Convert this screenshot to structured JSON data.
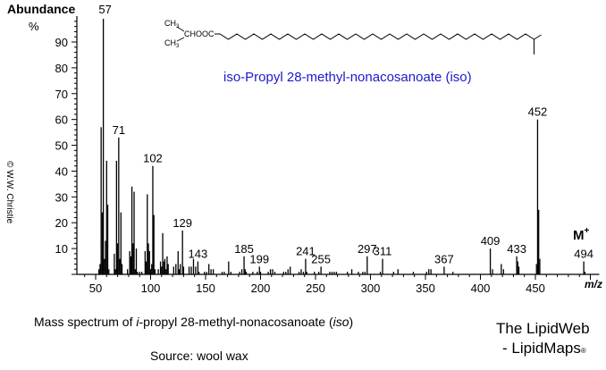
{
  "chart_data": {
    "type": "bar",
    "title": "iso-Propyl 28-methyl-nonacosanoate  (iso)",
    "xlabel": "m/z",
    "ylabel": "Abundance %",
    "xlim": [
      35,
      500
    ],
    "ylim": [
      0,
      100
    ],
    "xticks": [
      50,
      100,
      150,
      200,
      250,
      300,
      350,
      400,
      450
    ],
    "yticks": [
      10,
      20,
      30,
      40,
      50,
      60,
      70,
      80,
      90
    ],
    "grid": false,
    "labeled_peaks": [
      {
        "mz": 57,
        "label": "57"
      },
      {
        "mz": 71,
        "label": "71"
      },
      {
        "mz": 102,
        "label": "102"
      },
      {
        "mz": 129,
        "label": "129"
      },
      {
        "mz": 143,
        "label": "143"
      },
      {
        "mz": 185,
        "label": "185"
      },
      {
        "mz": 199,
        "label": "199"
      },
      {
        "mz": 241,
        "label": "241"
      },
      {
        "mz": 255,
        "label": "255"
      },
      {
        "mz": 297,
        "label": "297"
      },
      {
        "mz": 311,
        "label": "311"
      },
      {
        "mz": 367,
        "label": "367"
      },
      {
        "mz": 409,
        "label": "409"
      },
      {
        "mz": 433,
        "label": "433"
      },
      {
        "mz": 452,
        "label": "452"
      },
      {
        "mz": 494,
        "label": "494"
      }
    ],
    "peaks": [
      [
        53,
        2
      ],
      [
        54,
        4
      ],
      [
        55,
        57
      ],
      [
        56,
        24
      ],
      [
        57,
        100
      ],
      [
        58,
        6
      ],
      [
        59,
        13
      ],
      [
        60,
        44
      ],
      [
        61,
        27
      ],
      [
        62,
        2
      ],
      [
        67,
        8
      ],
      [
        68,
        2
      ],
      [
        69,
        44
      ],
      [
        70,
        12
      ],
      [
        71,
        53
      ],
      [
        72,
        6
      ],
      [
        73,
        24
      ],
      [
        74,
        4
      ],
      [
        79,
        2
      ],
      [
        81,
        9
      ],
      [
        82,
        7
      ],
      [
        83,
        34
      ],
      [
        84,
        12
      ],
      [
        85,
        32
      ],
      [
        86,
        2
      ],
      [
        87,
        10
      ],
      [
        88,
        1
      ],
      [
        90,
        1
      ],
      [
        92,
        1
      ],
      [
        95,
        9
      ],
      [
        96,
        5
      ],
      [
        97,
        31
      ],
      [
        98,
        12
      ],
      [
        99,
        9
      ],
      [
        100,
        2
      ],
      [
        101,
        4
      ],
      [
        102,
        42
      ],
      [
        103,
        23
      ],
      [
        104,
        2
      ],
      [
        107,
        2
      ],
      [
        109,
        5
      ],
      [
        110,
        3
      ],
      [
        111,
        16
      ],
      [
        112,
        5
      ],
      [
        113,
        6
      ],
      [
        114,
        2
      ],
      [
        115,
        7
      ],
      [
        116,
        4
      ],
      [
        121,
        3
      ],
      [
        123,
        4
      ],
      [
        125,
        9
      ],
      [
        126,
        2
      ],
      [
        127,
        4
      ],
      [
        129,
        17
      ],
      [
        130,
        3
      ],
      [
        135,
        3
      ],
      [
        137,
        3
      ],
      [
        139,
        6
      ],
      [
        141,
        3
      ],
      [
        143,
        5
      ],
      [
        144,
        1
      ],
      [
        149,
        1
      ],
      [
        151,
        1
      ],
      [
        153,
        4
      ],
      [
        155,
        2
      ],
      [
        157,
        2
      ],
      [
        165,
        1
      ],
      [
        167,
        1
      ],
      [
        171,
        5
      ],
      [
        173,
        1
      ],
      [
        181,
        1
      ],
      [
        183,
        2
      ],
      [
        185,
        7
      ],
      [
        186,
        2
      ],
      [
        187,
        1
      ],
      [
        193,
        1
      ],
      [
        197,
        1
      ],
      [
        199,
        3
      ],
      [
        200,
        1
      ],
      [
        207,
        1
      ],
      [
        209,
        2
      ],
      [
        211,
        2
      ],
      [
        213,
        1
      ],
      [
        221,
        1
      ],
      [
        223,
        1
      ],
      [
        225,
        2
      ],
      [
        227,
        3
      ],
      [
        235,
        1
      ],
      [
        237,
        2
      ],
      [
        239,
        1
      ],
      [
        241,
        6
      ],
      [
        242,
        1
      ],
      [
        249,
        1
      ],
      [
        253,
        1
      ],
      [
        255,
        3
      ],
      [
        263,
        1
      ],
      [
        265,
        1
      ],
      [
        267,
        1
      ],
      [
        269,
        1
      ],
      [
        279,
        1
      ],
      [
        283,
        2
      ],
      [
        289,
        1
      ],
      [
        293,
        1
      ],
      [
        295,
        1
      ],
      [
        297,
        7
      ],
      [
        309,
        1
      ],
      [
        311,
        6
      ],
      [
        321,
        1
      ],
      [
        325,
        2
      ],
      [
        339,
        1
      ],
      [
        351,
        1
      ],
      [
        353,
        2
      ],
      [
        355,
        2
      ],
      [
        367,
        3
      ],
      [
        375,
        1
      ],
      [
        409,
        10
      ],
      [
        411,
        2
      ],
      [
        419,
        4
      ],
      [
        421,
        2
      ],
      [
        433,
        7
      ],
      [
        434,
        5
      ],
      [
        435,
        3
      ],
      [
        451,
        4
      ],
      [
        452,
        60
      ],
      [
        453,
        25
      ],
      [
        454,
        6
      ],
      [
        494,
        5
      ],
      [
        495,
        1
      ]
    ],
    "annotations": [
      "M+",
      "m/z"
    ]
  },
  "axis": {
    "ylabel_main": "Abundance",
    "ylabel_unit": "%",
    "xlabel": "m/z",
    "molecular_ion": "M",
    "molecular_ion_sup": "+"
  },
  "structure": {
    "head_ch3_top": "CH3",
    "head_ch3_bottom": "CH3",
    "head_group": "CHOOC",
    "compound_name": "iso-Propyl 28-methyl-nonacosanoate  (iso)"
  },
  "footer": {
    "caption_prefix": "Mass spectrum of ",
    "caption_italic_i": "i",
    "caption_mid": "-propyl 28-methyl-nonacosanoate (",
    "caption_italic_iso": "iso",
    "caption_suffix": ")",
    "source": "Source: wool wax",
    "brand_line1": "The LipidWeb",
    "brand_line2": "- LipidMaps",
    "brand_mark": "®",
    "copyright": "© W.W. Christie"
  }
}
